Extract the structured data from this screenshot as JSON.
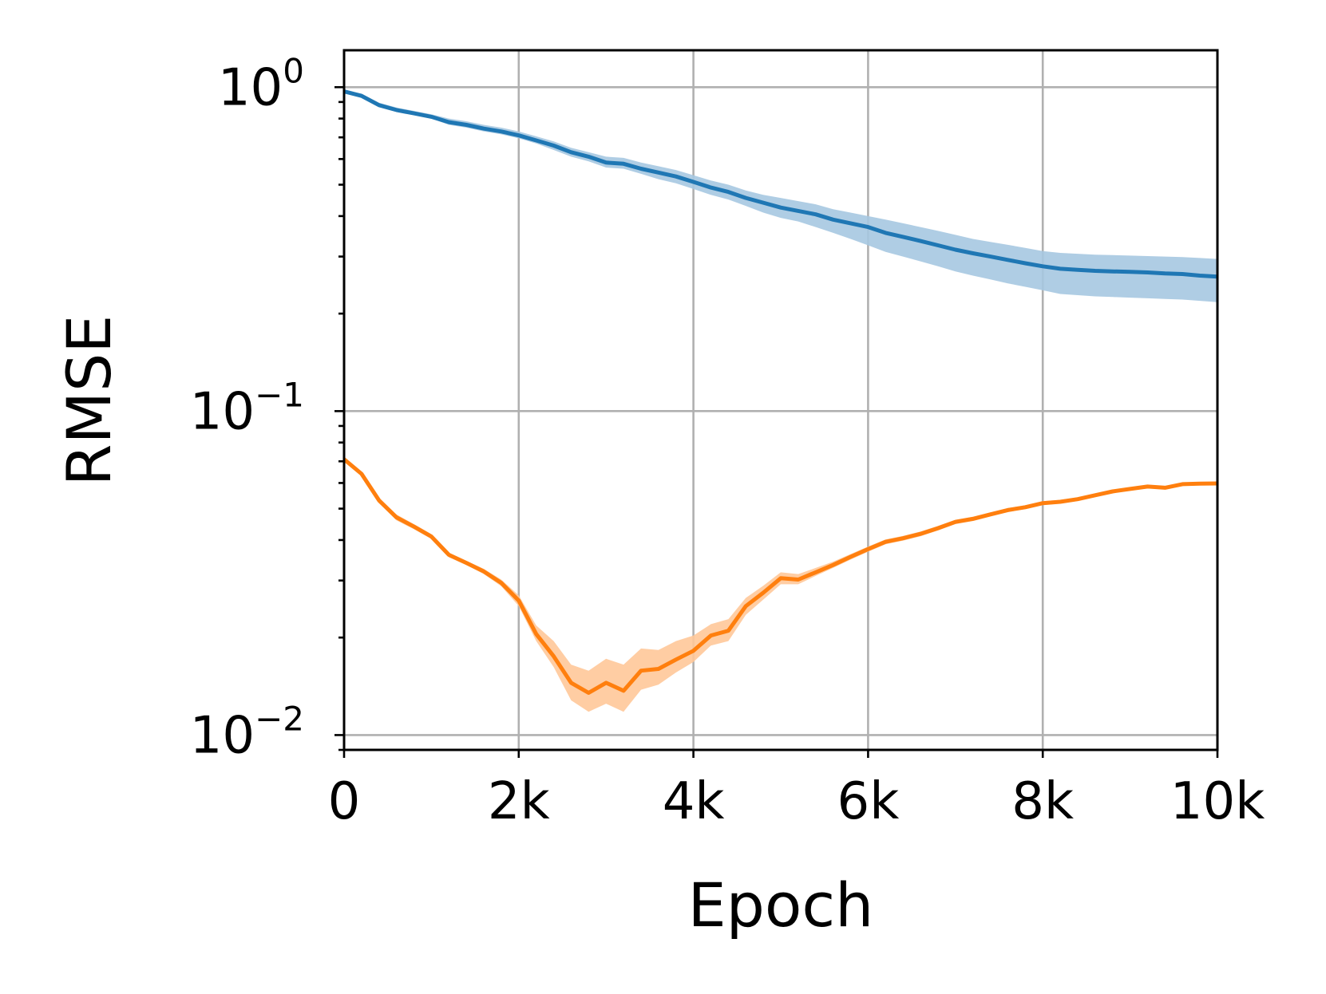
{
  "chart_data": {
    "type": "line",
    "title": "",
    "xlabel": "Epoch",
    "ylabel": "RMSE",
    "xlim": [
      0,
      10000
    ],
    "ylim": [
      0.009,
      1.3
    ],
    "yscale": "log",
    "grid": true,
    "x_ticks": [
      {
        "value": 0,
        "label": "0"
      },
      {
        "value": 2000,
        "label": "2k"
      },
      {
        "value": 4000,
        "label": "4k"
      },
      {
        "value": 6000,
        "label": "6k"
      },
      {
        "value": 8000,
        "label": "8k"
      },
      {
        "value": 10000,
        "label": "10k"
      }
    ],
    "y_ticks": [
      {
        "value": 1,
        "base": "10",
        "exp": "0"
      },
      {
        "value": 0.1,
        "base": "10",
        "exp": "−1"
      },
      {
        "value": 0.01,
        "base": "10",
        "exp": "−2"
      }
    ],
    "x": [
      0,
      200,
      400,
      600,
      800,
      1000,
      1200,
      1400,
      1600,
      1800,
      2000,
      2200,
      2400,
      2600,
      2800,
      3000,
      3200,
      3400,
      3600,
      3800,
      4000,
      4200,
      4400,
      4600,
      4800,
      5000,
      5200,
      5400,
      5600,
      5800,
      6000,
      6200,
      6400,
      6600,
      6800,
      7000,
      7200,
      7400,
      7600,
      7800,
      8000,
      8200,
      8400,
      8600,
      8800,
      9000,
      9200,
      9400,
      9600,
      9800,
      10000
    ],
    "series": [
      {
        "color": "#1f77b4",
        "band_color": "#a6c8e1",
        "values": [
          0.97,
          0.94,
          0.88,
          0.85,
          0.83,
          0.81,
          0.78,
          0.765,
          0.745,
          0.73,
          0.71,
          0.685,
          0.66,
          0.63,
          0.61,
          0.585,
          0.58,
          0.56,
          0.545,
          0.53,
          0.51,
          0.49,
          0.475,
          0.455,
          0.44,
          0.425,
          0.415,
          0.405,
          0.39,
          0.38,
          0.37,
          0.355,
          0.345,
          0.335,
          0.325,
          0.315,
          0.307,
          0.3,
          0.293,
          0.286,
          0.28,
          0.275,
          0.273,
          0.271,
          0.27,
          0.269,
          0.268,
          0.266,
          0.265,
          0.262,
          0.26
        ],
        "lower": [
          0.96,
          0.93,
          0.87,
          0.84,
          0.82,
          0.8,
          0.765,
          0.75,
          0.73,
          0.715,
          0.695,
          0.67,
          0.64,
          0.61,
          0.59,
          0.565,
          0.56,
          0.54,
          0.52,
          0.505,
          0.485,
          0.465,
          0.45,
          0.43,
          0.41,
          0.395,
          0.385,
          0.37,
          0.355,
          0.34,
          0.325,
          0.31,
          0.3,
          0.29,
          0.28,
          0.27,
          0.262,
          0.255,
          0.248,
          0.242,
          0.236,
          0.23,
          0.228,
          0.226,
          0.225,
          0.224,
          0.223,
          0.222,
          0.221,
          0.219,
          0.217
        ],
        "upper": [
          0.98,
          0.955,
          0.895,
          0.865,
          0.845,
          0.825,
          0.8,
          0.785,
          0.765,
          0.75,
          0.73,
          0.705,
          0.68,
          0.65,
          0.63,
          0.61,
          0.605,
          0.585,
          0.57,
          0.555,
          0.535,
          0.515,
          0.5,
          0.48,
          0.465,
          0.455,
          0.445,
          0.435,
          0.42,
          0.41,
          0.4,
          0.39,
          0.38,
          0.37,
          0.36,
          0.35,
          0.34,
          0.333,
          0.326,
          0.319,
          0.312,
          0.308,
          0.306,
          0.304,
          0.303,
          0.302,
          0.301,
          0.3,
          0.299,
          0.297,
          0.295
        ]
      },
      {
        "color": "#ff7f0e",
        "band_color": "#ffc899",
        "values": [
          0.071,
          0.064,
          0.053,
          0.047,
          0.044,
          0.041,
          0.036,
          0.034,
          0.032,
          0.0295,
          0.026,
          0.0205,
          0.0175,
          0.0145,
          0.0135,
          0.0145,
          0.0137,
          0.0158,
          0.016,
          0.0171,
          0.0182,
          0.0203,
          0.021,
          0.025,
          0.0275,
          0.0305,
          0.0302,
          0.0318,
          0.0335,
          0.0355,
          0.0375,
          0.0395,
          0.0405,
          0.0418,
          0.0435,
          0.0455,
          0.0465,
          0.048,
          0.0495,
          0.0505,
          0.052,
          0.0525,
          0.0535,
          0.055,
          0.0565,
          0.0575,
          0.0585,
          0.058,
          0.0595,
          0.0597,
          0.0598
        ],
        "lower": [
          0.07,
          0.063,
          0.052,
          0.046,
          0.0432,
          0.0403,
          0.0354,
          0.0335,
          0.0314,
          0.0288,
          0.025,
          0.0195,
          0.0162,
          0.0128,
          0.0118,
          0.0125,
          0.0118,
          0.0138,
          0.0143,
          0.0156,
          0.0168,
          0.0189,
          0.0195,
          0.0235,
          0.0262,
          0.0292,
          0.0292,
          0.031,
          0.0328,
          0.0348,
          0.0368,
          0.0388,
          0.0398,
          0.0411,
          0.0428,
          0.0448,
          0.0458,
          0.0473,
          0.0488,
          0.0498,
          0.0513,
          0.0518,
          0.0528,
          0.0543,
          0.0558,
          0.0568,
          0.0578,
          0.0573,
          0.0588,
          0.059,
          0.0591
        ],
        "upper": [
          0.072,
          0.065,
          0.054,
          0.048,
          0.0448,
          0.0417,
          0.0366,
          0.0345,
          0.0326,
          0.0302,
          0.027,
          0.0218,
          0.0195,
          0.0165,
          0.0158,
          0.0172,
          0.0165,
          0.0185,
          0.0183,
          0.0195,
          0.0203,
          0.022,
          0.0228,
          0.0265,
          0.0289,
          0.0318,
          0.0314,
          0.0328,
          0.0343,
          0.0362,
          0.0382,
          0.0402,
          0.0412,
          0.0425,
          0.0442,
          0.0462,
          0.0472,
          0.0487,
          0.0502,
          0.0512,
          0.0527,
          0.0532,
          0.0542,
          0.0557,
          0.0572,
          0.0582,
          0.0592,
          0.0587,
          0.0602,
          0.0604,
          0.0605
        ]
      }
    ]
  }
}
